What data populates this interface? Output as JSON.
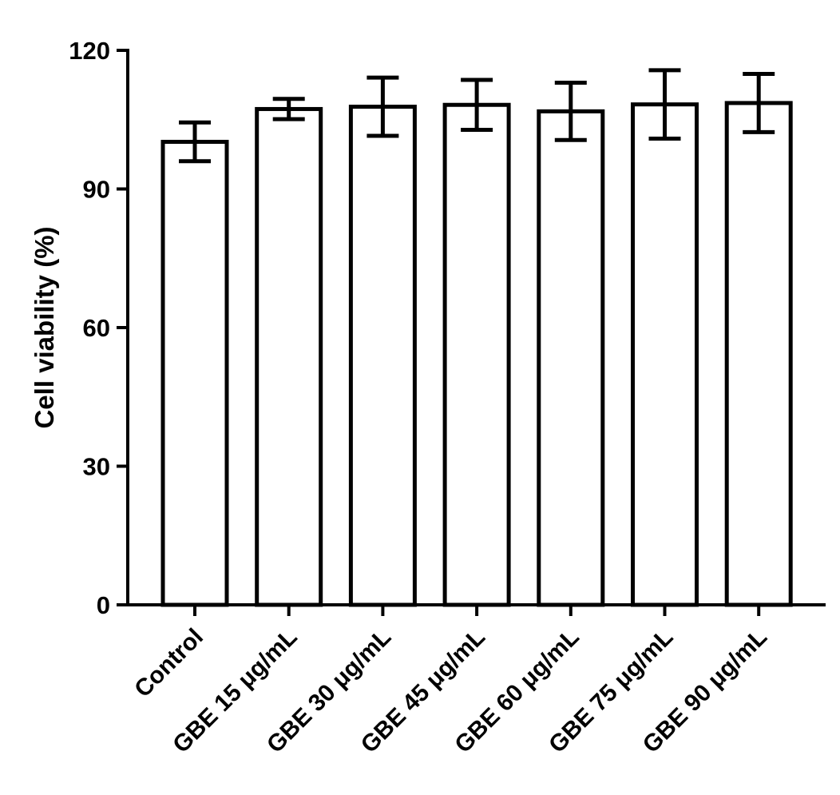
{
  "chart_data": {
    "type": "bar",
    "title": "",
    "xlabel": "",
    "ylabel": "Cell viability (%)",
    "ylim": [
      0,
      120
    ],
    "yticks": [
      "0",
      "30",
      "60",
      "90",
      "120"
    ],
    "ytick_values": [
      0,
      30,
      60,
      90,
      120
    ],
    "categories": [
      "Control",
      "GBE 15 μg/mL",
      "GBE 30 μg/mL",
      "GBE 45 μg/mL",
      "GBE 60 μg/mL",
      "GBE 75 μg/mL",
      "GBE 90 μg/mL"
    ],
    "values": [
      100.2,
      107.3,
      107.8,
      108.2,
      106.8,
      108.3,
      108.6
    ],
    "error": [
      4.2,
      2.2,
      6.3,
      5.4,
      6.2,
      7.4,
      6.3
    ],
    "grid": false,
    "colors": {
      "bar_fill": "#ffffff",
      "bar_stroke": "#000000",
      "axis": "#000000"
    }
  }
}
